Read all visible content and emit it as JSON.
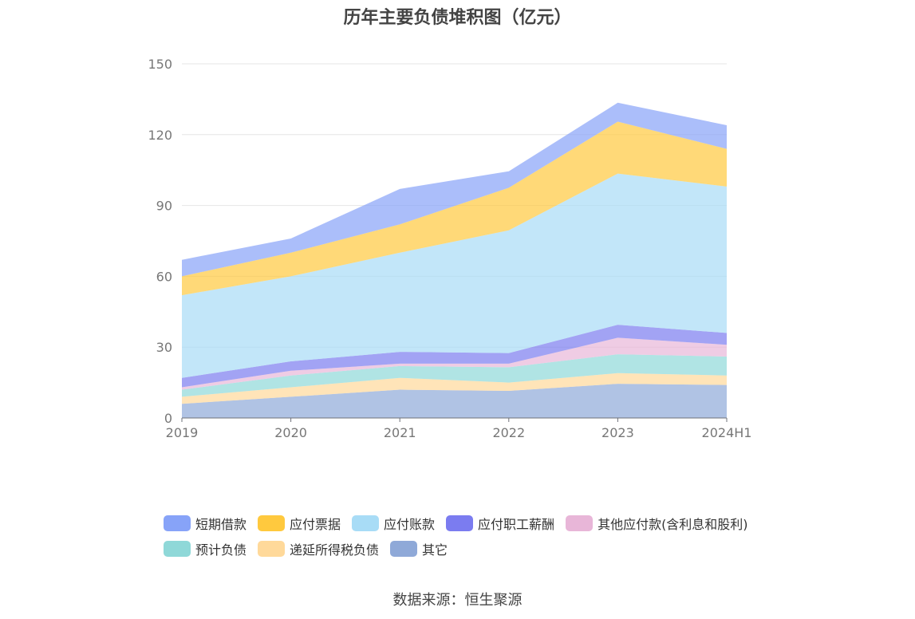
{
  "chart_data": {
    "type": "area",
    "stacked": true,
    "title": "历年主要负债堆积图（亿元）",
    "categories": [
      "2019",
      "2020",
      "2021",
      "2022",
      "2023",
      "2024H1"
    ],
    "ylim": [
      0,
      150
    ],
    "yticks": [
      0,
      30,
      60,
      90,
      120,
      150
    ],
    "grid": true,
    "series": [
      {
        "name": "其它",
        "color": "#8fa9d8",
        "values": [
          6,
          9,
          12,
          11.5,
          14.5,
          14
        ]
      },
      {
        "name": "递延所得税负债",
        "color": "#ffd99a",
        "values": [
          3,
          4,
          5,
          3.5,
          4.5,
          4
        ]
      },
      {
        "name": "预计负债",
        "color": "#8fd8d8",
        "values": [
          3,
          5,
          5,
          6.5,
          8,
          8
        ]
      },
      {
        "name": "其他应付款(含利息和股利)",
        "color": "#e8b6d8",
        "values": [
          1,
          2,
          1,
          1.5,
          7,
          5
        ]
      },
      {
        "name": "应付职工薪酬",
        "color": "#7b7cf0",
        "values": [
          4,
          4,
          5,
          4.5,
          5.5,
          5
        ]
      },
      {
        "name": "应付账款",
        "color": "#a8dcf6",
        "values": [
          35,
          36,
          42,
          52,
          64,
          62
        ]
      },
      {
        "name": "应付票据",
        "color": "#ffc93e",
        "values": [
          8,
          10,
          12,
          18,
          22,
          16
        ]
      },
      {
        "name": "短期借款",
        "color": "#87a3f8",
        "values": [
          7,
          6,
          15,
          7,
          8,
          10
        ]
      }
    ],
    "legend": {
      "placement": "bottom",
      "order": [
        "短期借款",
        "应付票据",
        "应付账款",
        "应付职工薪酬",
        "其他应付款(含利息和股利)",
        "预计负债",
        "递延所得税负债",
        "其它"
      ]
    }
  },
  "source_text": "数据来源：恒生聚源"
}
